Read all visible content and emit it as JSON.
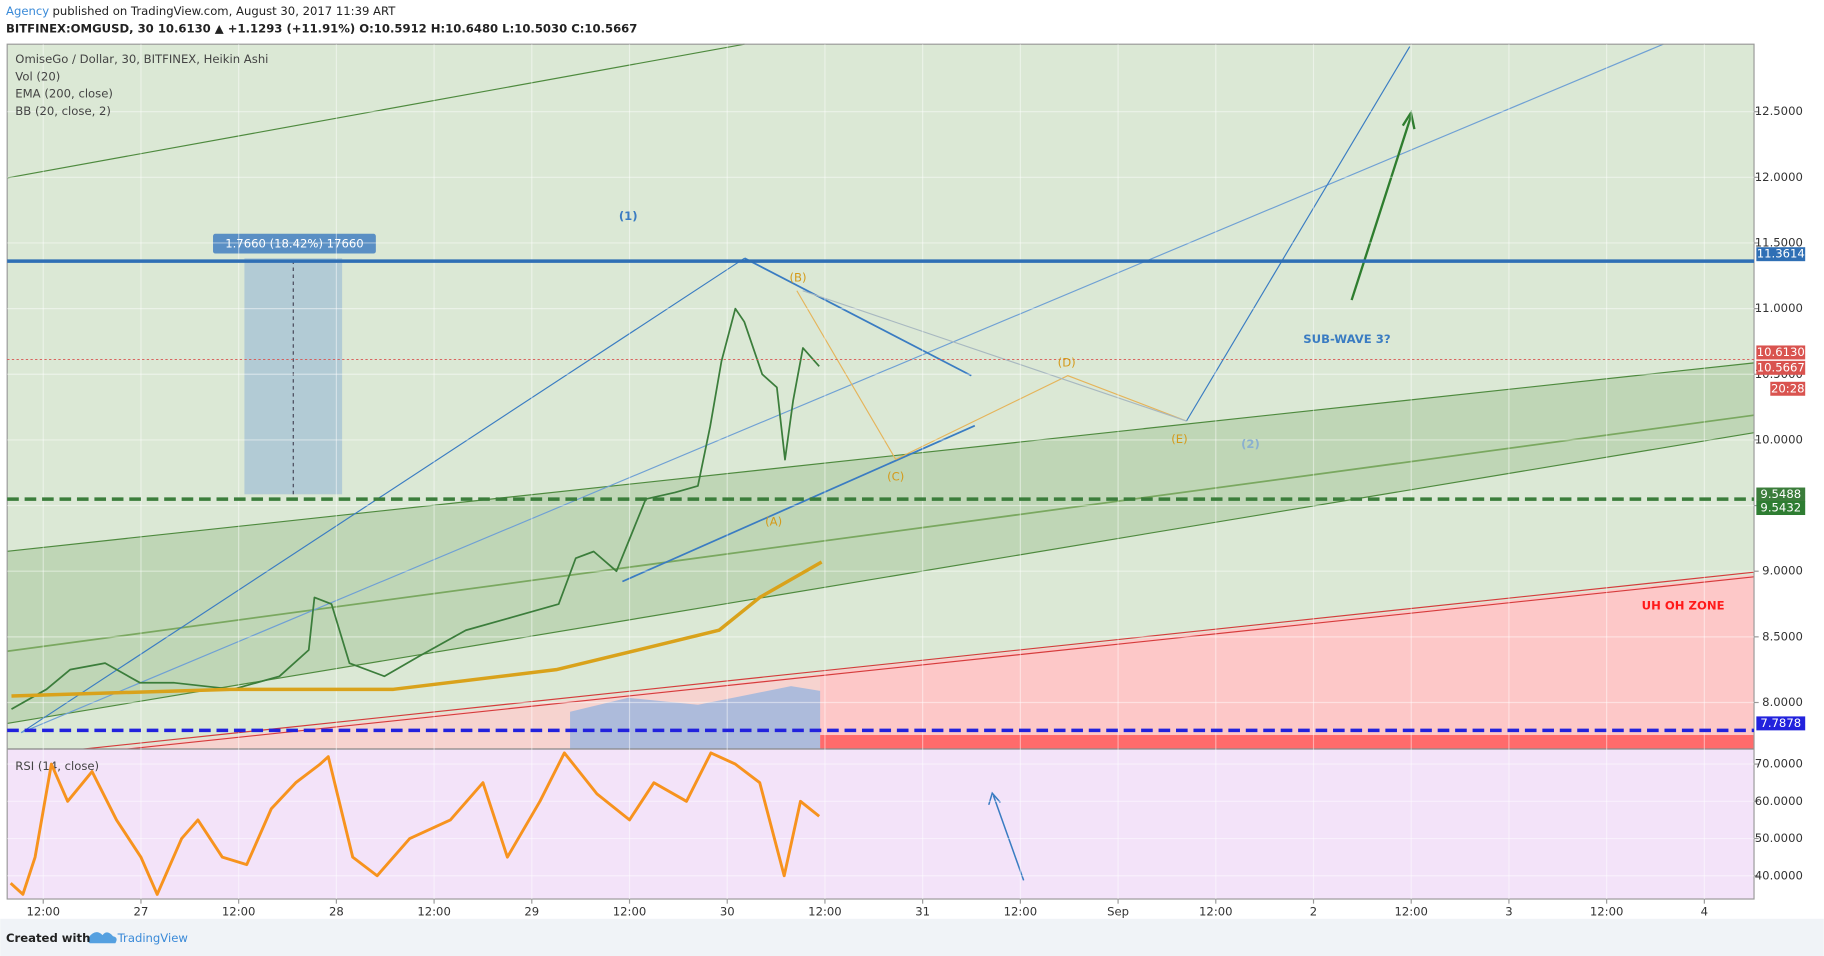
{
  "page": {
    "author": "Agency",
    "published": "published on TradingView.com, August 30, 2017 11:39 ART",
    "symbol_line": "BITFINEX:OMGUSD, 30  10.6130 ▲ +1.1293 (+11.91%) O:10.5912 H:10.6480 L:10.5030 C:10.5667",
    "created": "Created with",
    "brand": "TradingView"
  },
  "chart_data": [
    {
      "type": "line",
      "title": "OmiseGo / Dollar, 30, BITFINEX, Heikin Ashi",
      "indicators": [
        "Vol (20)",
        "BB (20, close, 2)"
      ],
      "xlim": [
        7.57,
        222.1
      ],
      "xticks": [
        {
          "value": 12,
          "label": "12:00"
        },
        {
          "value": 24,
          "label": "27"
        },
        {
          "value": 36,
          "label": "12:00"
        },
        {
          "value": 48,
          "label": "28"
        },
        {
          "value": 60,
          "label": "12:00"
        },
        {
          "value": 72,
          "label": "29"
        },
        {
          "value": 84,
          "label": "12:00"
        },
        {
          "value": 96,
          "label": "30"
        },
        {
          "value": 108,
          "label": "12:00"
        },
        {
          "value": 120,
          "label": "31"
        },
        {
          "value": 132,
          "label": "12:00"
        },
        {
          "value": 144,
          "label": "Sep"
        },
        {
          "value": 156,
          "label": "12:00"
        },
        {
          "value": 168,
          "label": "2"
        },
        {
          "value": 180,
          "label": "12:00"
        },
        {
          "value": 192,
          "label": "3"
        },
        {
          "value": 204,
          "label": "12:00"
        },
        {
          "value": 216,
          "label": "4"
        }
      ],
      "ylim": [
        7.646,
        13.014
      ],
      "yticks": [
        {
          "value": 8,
          "label": "8.0000"
        },
        {
          "value": 8.5,
          "label": "8.5000"
        },
        {
          "value": 9,
          "label": "9.0000"
        },
        {
          "value": 9.5,
          "label": "9.5000"
        },
        {
          "value": 10,
          "label": "10.0000"
        },
        {
          "value": 10.5,
          "label": "10.5000"
        },
        {
          "value": 11,
          "label": "11.0000"
        },
        {
          "value": 11.5,
          "label": "11.5000"
        },
        {
          "value": 12,
          "label": "12.0000"
        },
        {
          "value": 12.5,
          "label": "12.5000"
        }
      ],
      "grid": true,
      "series": [
        {
          "name": "OmiseGo / Dollar, 30, BITFINEX, Heikin Ashi",
          "color": "#3b7d3b",
          "width": 1.5,
          "x": [
            8.1,
            12.4,
            15.3,
            19.6,
            23.9,
            28.1,
            35.3,
            41,
            44.6,
            45.3,
            47.4,
            49.6,
            53.9,
            58.1,
            63.9,
            69.6,
            75.3,
            77.4,
            79.6,
            82.4,
            86,
            89.6,
            92.4,
            93.9,
            95.3,
            97,
            98.1,
            100.3,
            102.1,
            103.1,
            104.1,
            105.3,
            107.3
          ],
          "values": [
            7.95,
            8.1,
            8.25,
            8.3,
            8.15,
            8.15,
            8.1,
            8.2,
            8.4,
            8.8,
            8.75,
            8.3,
            8.2,
            8.35,
            8.55,
            8.65,
            8.75,
            9.1,
            9.15,
            9,
            9.55,
            9.6,
            9.65,
            10.1,
            10.6,
            11,
            10.9,
            10.5,
            10.4,
            9.85,
            10.3,
            10.7,
            10.56
          ]
        },
        {
          "name": "EMA (200, close)",
          "color": "#d9a21b",
          "width": 3,
          "x": [
            8.1,
            35,
            55,
            75,
            85,
            95,
            100,
            107.6
          ],
          "values": [
            8.05,
            8.1,
            8.1,
            8.25,
            8.4,
            8.55,
            8.8,
            9.07
          ]
        }
      ],
      "price_labels": [
        {
          "value": 11.3614,
          "color": "#2f6fb5",
          "line": "solid"
        },
        {
          "value": 10.613,
          "label": "10.6130",
          "color": "#d9534f"
        },
        {
          "value": 10.5667,
          "color": "#d9534f"
        },
        {
          "value": 9.5488,
          "color": "#3b7d3b",
          "line": "dashed"
        },
        {
          "value": 9.5432,
          "color": "#2e7d32"
        },
        {
          "value": 7.7878,
          "color": "#2222dd",
          "line": "dashed"
        }
      ],
      "countdown": "20:28",
      "measure": "1.7660 (18.42%) 17660",
      "annotations": [
        {
          "text": "(1)",
          "color": "#3a7cc2"
        },
        {
          "text": "(B)",
          "color": "#d49a1a"
        },
        {
          "text": "(D)",
          "color": "#d49a1a"
        },
        {
          "text": "(E)",
          "color": "#d49a1a"
        },
        {
          "text": "(2)",
          "color": "#8ab0d0"
        },
        {
          "text": "(C)",
          "color": "#d49a1a"
        },
        {
          "text": "(A)",
          "color": "#d49a1a"
        },
        {
          "text": "SUB-WAVE 3?",
          "color": "#3a7cc2"
        },
        {
          "text": "UH OH ZONE",
          "color": "#ff1a1a"
        }
      ]
    },
    {
      "type": "line",
      "title": "RSI (14, close)",
      "xlim": [
        7.57,
        222.1
      ],
      "ylim": [
        33.75,
        74.06
      ],
      "yticks": [
        {
          "value": 40,
          "label": "40.0000"
        },
        {
          "value": 50,
          "label": "50.0000"
        },
        {
          "value": 60,
          "label": "60.0000"
        },
        {
          "value": 70,
          "label": "70.0000"
        }
      ],
      "grid": true,
      "series": [
        {
          "color": "#f7931e",
          "width": 2.5,
          "x": [
            8,
            9.5,
            11,
            13,
            15,
            18,
            21,
            24,
            26,
            29,
            31,
            34,
            37,
            40,
            43,
            46,
            47,
            50,
            53,
            57,
            62,
            66,
            69,
            73,
            76,
            80,
            84,
            87,
            91,
            94,
            97,
            100,
            103,
            105,
            107.3
          ],
          "values": [
            38,
            35,
            45,
            70,
            60,
            68,
            55,
            45,
            35,
            50,
            55,
            45,
            43,
            58,
            65,
            70,
            72,
            45,
            40,
            50,
            55,
            65,
            45,
            60,
            73,
            62,
            55,
            65,
            60,
            73,
            70,
            65,
            40,
            60,
            56
          ]
        }
      ]
    }
  ]
}
